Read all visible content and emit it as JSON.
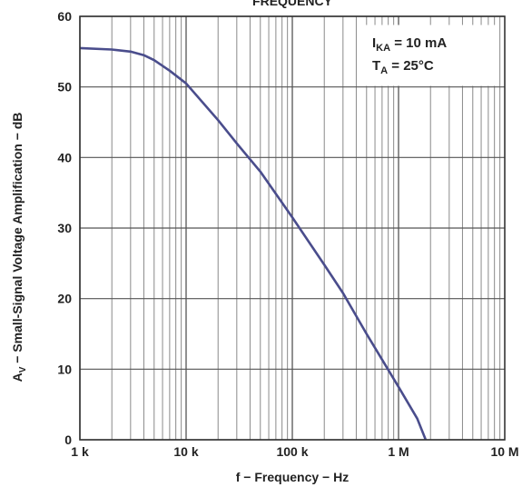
{
  "chart_data": {
    "type": "line",
    "title": "FREQUENCY",
    "xlabel": "f − Frequency − Hz",
    "ylabel_main": "A",
    "ylabel_sub": "V",
    "ylabel_rest": " − Small-Signal Voltage Amplification − dB",
    "x_scale": "log",
    "xlim": [
      1000,
      10000000
    ],
    "ylim": [
      0,
      60
    ],
    "x_ticks": [
      1000,
      10000,
      100000,
      1000000,
      10000000
    ],
    "x_tick_labels": [
      "1 k",
      "10 k",
      "100 k",
      "1 M",
      "10 M"
    ],
    "y_ticks": [
      0,
      10,
      20,
      30,
      40,
      50,
      60
    ],
    "y_tick_labels": [
      "0",
      "10",
      "20",
      "30",
      "40",
      "50",
      "60"
    ],
    "grid": true,
    "line_color": "#4a4d8c",
    "annotations": [
      {
        "main": "I",
        "sub": "KA",
        "rest": " = 10 mA"
      },
      {
        "main": "T",
        "sub": "A",
        "rest": " = 25°C"
      }
    ],
    "series": [
      {
        "x": [
          1000,
          2000,
          3000,
          4000,
          5000,
          7000,
          10000,
          20000,
          30000,
          50000,
          100000,
          200000,
          300000,
          500000,
          1000000,
          1500000,
          1800000
        ],
        "y": [
          55.5,
          55.3,
          55.0,
          54.5,
          53.8,
          52.3,
          50.5,
          45.3,
          42.0,
          38.0,
          31.5,
          24.8,
          20.8,
          15.0,
          7.5,
          3.0,
          0.0
        ]
      }
    ]
  }
}
